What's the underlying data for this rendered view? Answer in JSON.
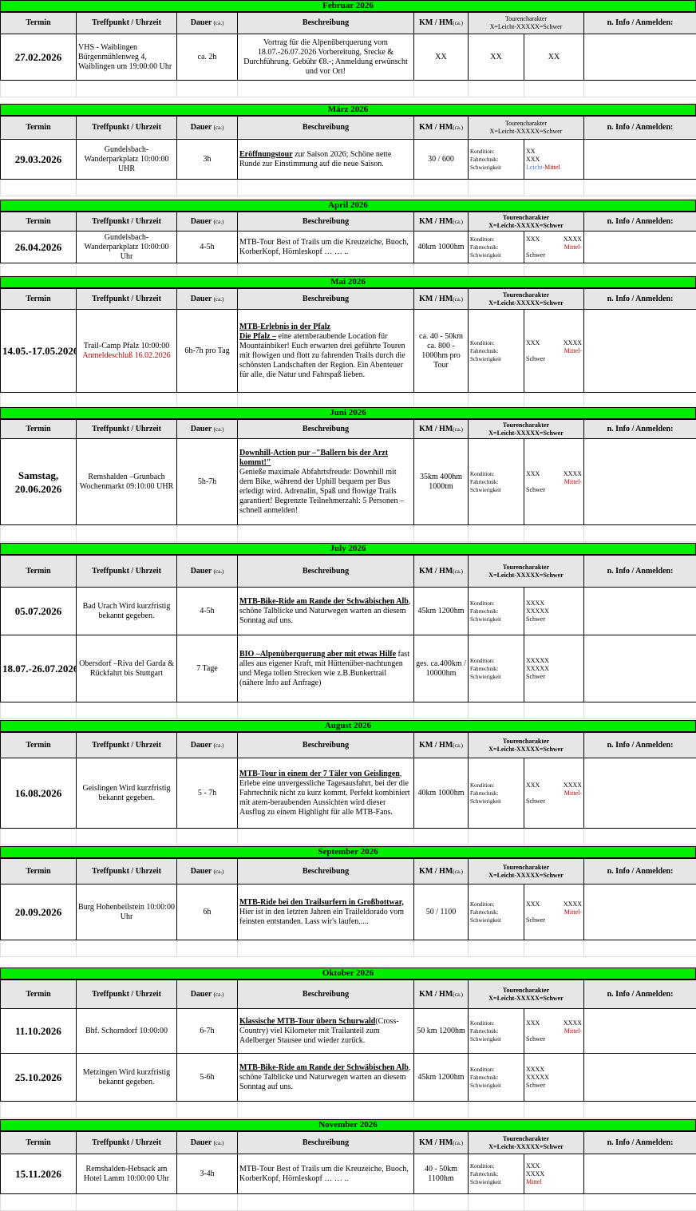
{
  "header": {
    "termin": "Termin",
    "treffpunkt": "Treffpunkt / Uhrzeit",
    "dauer": "Dauer",
    "ca": "(ca.)",
    "beschreibung": "Beschreibung",
    "km": "KM / HM",
    "tourencharakter": "Tourencharakter",
    "scale": "X=Leicht-XXXXX=Schwer",
    "info": "n. Info / Anmelden:"
  },
  "labels": {
    "kondition": "Kondition:",
    "fahrtechnik": "Fahrtechnik:",
    "schwierigkeit": "Schwierigkeit"
  },
  "months": [
    {
      "title": "Februar 2026",
      "events": [
        {
          "date": "27.02.2026",
          "place": "VHS - Waiblingen Bürgenmühlenweg 4, Waiblingen um 19:00:00 Uhr",
          "dauer": "ca. 2h",
          "title": "",
          "desc": "Vortrag für die Alpenüberquerung vom 18.07.-26.07.2026 Vorbereitung, Srecke & Durchführung. Gebühr €8.-; Anmeldung erwünscht und vor Ort!",
          "km": "XX",
          "k": "XX",
          "f": "XX"
        }
      ]
    },
    {
      "title": "März 2026",
      "events": [
        {
          "date": "29.03.2026",
          "place": "Gundelsbach-Wanderparkplatz 10:00:00 UHR",
          "dauer": "3h",
          "title": "Eröffnungstour",
          "desc": " zur Saison 2026; Schöne nette Runde zur Einstimmung auf die neue Saison.",
          "km": "30 / 600",
          "k": "XX",
          "f": "XXX",
          "s1": "Leicht",
          "s2": "-Mittel"
        }
      ]
    },
    {
      "title": "April 2026",
      "events": [
        {
          "date": "26.04.2026",
          "place": "Gundelsbach-Wanderparkplatz 10:00:00 Uhr",
          "dauer": "4-5h",
          "title": "",
          "desc": "MTB-Tour Best of Trails um die Kreuzeiche, Buoch, KorberKopf, Hörnleskopf … … ..",
          "km": "40km 1000hm",
          "k": "XXX",
          "k2": "XXXX",
          "s1": "Schwer",
          "s2": "Mittel-"
        }
      ]
    },
    {
      "title": "Mai 2026",
      "events": [
        {
          "date": "14.05.-17.05.2026",
          "place": "Trail-Camp Pfalz 10:00:00",
          "place_note": "Anmeldeschluß 16.02.2026",
          "dauer": "6h-7h pro Tag",
          "title": "MTB-Erlebnis in der Pfalz",
          "title2": "Die Pfalz –",
          "desc": " eine atemberaubende Location für Mountainbiker! Euch erwarten drei geführte Touren mit flowigen und flott zu fahrenden Trails durch die schönsten Landschaften der Region. Ein Abenteuer für alle, die Natur und Fahrspaß lieben.",
          "km": "ca. 40 - 50km ca. 800 - 1000hm pro Tour",
          "k": "XXX",
          "k2": "XXXX",
          "s1": "Schwer",
          "s2": "Mittel-"
        }
      ]
    },
    {
      "title": "Juni 2026",
      "events": [
        {
          "date": "Samstag, 20.06.2026",
          "place": "Remshalden –Grunbach Wochenmarkt 09:10:00 UHR",
          "dauer": "5h-7h",
          "title": "Downhill-Action pur –\"Ballern bis der Arzt kommt!\"",
          "desc": "Genieße maximale Abfahrtsfreude: Downhill mit dem Bike, während der Uphill bequem per Bus erledigt wird. Adrenalin, Spaß und flowige Trails garantiert! Begrenzte Teilnehmerzahl: 5 Personen – schnell anmelden!",
          "km": "35km 400hm 1000tm",
          "k": "XXX",
          "k2": "XXXX",
          "s1": "Schwer",
          "s2": "Mittel-"
        }
      ]
    },
    {
      "title": "July 2026",
      "events": [
        {
          "date": "05.07.2026",
          "place": "Bad Urach Wird kurzfristig bekannt gegeben.",
          "dauer": "4-5h",
          "title": "MTB-Bike-Ride am Rande der Schwäbischen Alb",
          "desc": ", schöne Talblicke und Naturwegen warten an diesem Sonntag auf uns.",
          "km": "45km 1200hm",
          "k": "XXXX",
          "f": "XXXXX",
          "s1": "Schwer"
        },
        {
          "date": "18.07.-26.07.2026",
          "place": "Obersdorf –Riva del Garda & Rückfahrt bis Stuttgart",
          "dauer": "7 Tage",
          "title": "BIO –Alpenüberquerung aber mit etwas Hilfe",
          "desc": " fast alles aus eigener Kraft, mit Hüttenüber-nachtungen und Mega tollen Strecken wie z.B.Bunkertrail (nähere Info auf Anfrage)",
          "km": "ges. ca.400km / 10000hm",
          "k": "XXXXX",
          "f": "XXXXX",
          "s1": "Schwer"
        }
      ]
    },
    {
      "title": "August 2026",
      "events": [
        {
          "date": "16.08.2026",
          "place": "Geislingen Wird kurzfristig bekannt gegeben.",
          "dauer": "5 - 7h",
          "title": "MTB-Tour in einem der 7 Täler von Geislingen",
          "desc": ", Erlebe eine unvergessliche Tagesausfahrt, bei der die Fahrtechnik nicht zu kurz kommt. Perfekt kombiniert mit atem-beraubenden Aussichten wird dieser Ausflug zu einem Highlight für alle MTB-Fans.",
          "km": "40km 1000hm",
          "k": "XXX",
          "k2": "XXXX",
          "s1": "Schwer",
          "s2": "Mittel-"
        }
      ]
    },
    {
      "title": "September 2026",
      "events": [
        {
          "date": "20.09.2026",
          "place": "Burg Hohenbeilstein 10:00:00 Uhr",
          "dauer": "6h",
          "title": "MTB-Ride bei den Trailsurfern in Großbottwar,",
          "desc": "Hier ist in den letzten Jahren ein Traileldorado vom feinsten entstanden. Lass wir's laufen.....",
          "km": "50 / 1100",
          "k": "XXX",
          "k2": "XXXX",
          "s1": "Schwer",
          "s2": "Mittel-"
        }
      ]
    },
    {
      "title": "Oktober 2026",
      "events": [
        {
          "date": "11.10.2026",
          "place": "Bhf. Schorndorf 10:00:00",
          "dauer": "6-7h",
          "title": "Klassische MTB-Tour übern Schurwald",
          "desc": "(Cross-Country) viel Kilometer mit Trailanteil zum Adelberger Stausee und wieder zurück.",
          "km": "50 km 1200hm",
          "k": "XXX",
          "k2": "XXXX",
          "s1": "Schwer",
          "s2": "Mittel-"
        },
        {
          "date": "25.10.2026",
          "place": "Metzingen Wird kurzfristig bekannt gegeben.",
          "dauer": "5-6h",
          "title": "MTB-Bike-Ride am Rande der Schwäbischen Alb",
          "desc": ", schöne Talblicke und Naturwegen warten an diesem Sonntag auf uns.",
          "km": "45km 1200hm",
          "k": "XXXX",
          "f": "XXXXX",
          "s1": "Schwer"
        }
      ]
    },
    {
      "title": "November 2026",
      "events": [
        {
          "date": "15.11.2026",
          "place": "Remshalden-Hebsack am Hotel Lamm 10:00:00 Uhr",
          "dauer": "3-4h",
          "title": "",
          "desc": "MTB-Tour Best of Trails um die Kreuzeiche, Buoch, KorberKopf, Hörnleskopf … … ..",
          "km": "40 - 50km 1100hm",
          "k": "XXX",
          "f": "XXXX",
          "s2": "Mittel"
        }
      ]
    }
  ]
}
